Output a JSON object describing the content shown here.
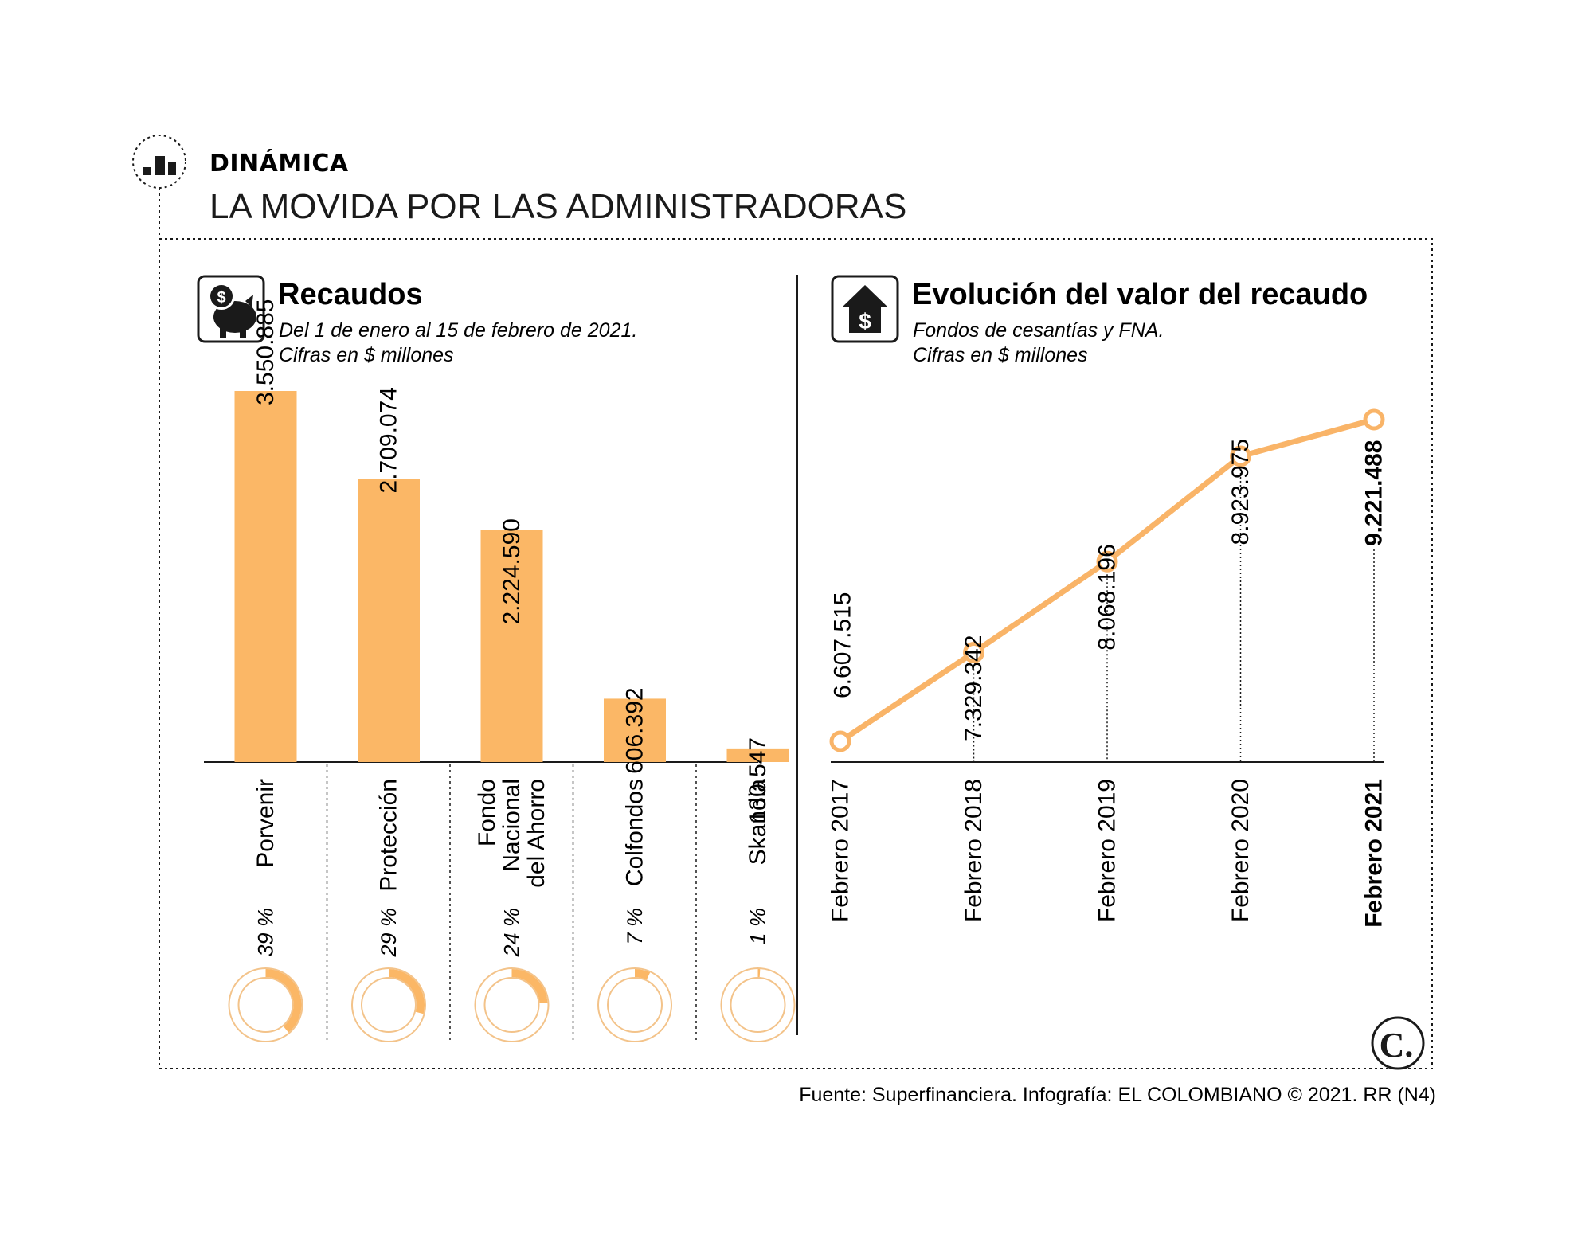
{
  "header": {
    "kicker": "DINÁMICA",
    "title": "LA MOVIDA POR LAS ADMINISTRADORAS"
  },
  "icons": {
    "header": "bar-chart-icon",
    "left_panel": "piggy-bank-dollar-icon",
    "right_panel": "house-dollar-icon",
    "logo": "el-colombiano-logo"
  },
  "colors": {
    "accent": "#FBB766",
    "accent_line": "#F9B468",
    "ring_track": "#F3C38A",
    "ink": "#1a1a1a"
  },
  "left_panel": {
    "title": "Recaudos",
    "subtitle_1": "Del 1 de enero al 15 de febrero de 2021.",
    "subtitle_2": "Cifras en $ millones"
  },
  "right_panel": {
    "title": "Evolución del valor del recaudo",
    "subtitle_1": "Fondos de cesantías y FNA.",
    "subtitle_2": "Cifras en $ millones"
  },
  "logo_letter": "C.",
  "source": "Fuente: Superfinanciera. Infografía: EL COLOMBIANO © 2021. RR (N4)",
  "chart_data": [
    {
      "type": "bar",
      "title": "Recaudos",
      "categories": [
        [
          "Porvenir"
        ],
        [
          "Protección"
        ],
        [
          "Fondo",
          "Nacional",
          "del Ahorro"
        ],
        [
          "Colfondos"
        ],
        [
          "Skandia"
        ]
      ],
      "values": [
        3550885,
        2709074,
        2224590,
        606392,
        130547
      ],
      "value_labels": [
        "3.550.885",
        "2.709.074",
        "2.224.590",
        "606.392",
        "130.547"
      ],
      "shares": [
        39,
        29,
        24,
        7,
        1
      ],
      "share_labels": [
        "39 %",
        "29 %",
        "24 %",
        "7 %",
        "1 %"
      ],
      "ylim": [
        0,
        3550885
      ],
      "grid": false
    },
    {
      "type": "line",
      "title": "Evolución del valor del recaudo",
      "x": [
        "Febrero 2017",
        "Febrero 2018",
        "Febrero 2019",
        "Febrero 2020",
        "Febrero 2021"
      ],
      "values": [
        6607515,
        7329342,
        8068196,
        8923975,
        9221488
      ],
      "value_labels": [
        "6.607.515",
        "7.329.342",
        "8.068.196",
        "8.923.975",
        "9.221.488"
      ],
      "highlight": "Febrero 2021",
      "grid": false
    }
  ]
}
